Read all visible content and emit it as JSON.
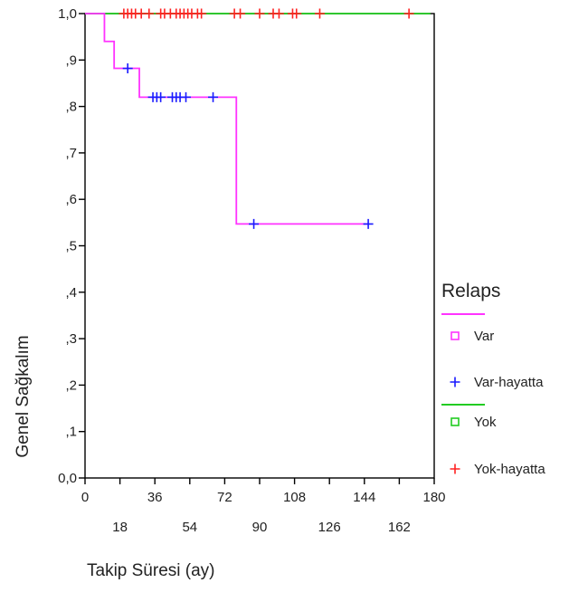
{
  "chart_data": {
    "type": "line",
    "subtype": "kaplan-meier",
    "xlabel": "Takip Süresi (ay)",
    "ylabel": "Genel Sağkalım",
    "xlim": [
      0,
      180
    ],
    "ylim": [
      0,
      1
    ],
    "xticks_upper": [
      "0",
      "36",
      "72",
      "108",
      "144",
      "180"
    ],
    "xticks_upper_values": [
      0,
      36,
      72,
      108,
      144,
      180
    ],
    "xticks_lower": [
      "18",
      "54",
      "90",
      "126",
      "162"
    ],
    "xticks_lower_values": [
      18,
      54,
      90,
      126,
      162
    ],
    "yticks": [
      "0,0",
      ",1",
      ",2",
      ",3",
      ",4",
      ",5",
      ",6",
      ",7",
      ",8",
      ",9",
      "1,0"
    ],
    "yticks_values": [
      0,
      0.1,
      0.2,
      0.3,
      0.4,
      0.5,
      0.6,
      0.7,
      0.8,
      0.9,
      1.0
    ],
    "legend": {
      "title": "Relaps",
      "position": "right",
      "entries": [
        {
          "label": "Var",
          "kind": "line",
          "color": "#ff33ff"
        },
        {
          "label": "Var",
          "kind": "square",
          "color": "#ff33ff"
        },
        {
          "label": "Var-hayatta",
          "kind": "plus",
          "color": "#1a1aff"
        },
        {
          "label": "Yok",
          "kind": "line",
          "color": "#22cc22"
        },
        {
          "label": "Yok",
          "kind": "square",
          "color": "#22cc22"
        },
        {
          "label": "Yok-hayatta",
          "kind": "plus",
          "color": "#ff2222"
        }
      ]
    },
    "series": [
      {
        "name": "Var",
        "color": "#ff33ff",
        "steps": [
          {
            "x": 0,
            "y": 1.0
          },
          {
            "x": 10,
            "y": 0.94
          },
          {
            "x": 15,
            "y": 0.882
          },
          {
            "x": 28,
            "y": 0.82
          },
          {
            "x": 78,
            "y": 0.547
          },
          {
            "x": 146,
            "y": 0.547
          }
        ],
        "censored": [
          {
            "x": 22,
            "y": 0.882
          },
          {
            "x": 35,
            "y": 0.82
          },
          {
            "x": 37,
            "y": 0.82
          },
          {
            "x": 39,
            "y": 0.82
          },
          {
            "x": 45,
            "y": 0.82
          },
          {
            "x": 47,
            "y": 0.82
          },
          {
            "x": 49,
            "y": 0.82
          },
          {
            "x": 52,
            "y": 0.82
          },
          {
            "x": 66,
            "y": 0.82
          },
          {
            "x": 87,
            "y": 0.547
          },
          {
            "x": 146,
            "y": 0.547
          }
        ],
        "censored_color": "#1a1aff"
      },
      {
        "name": "Yok",
        "color": "#22cc22",
        "steps": [
          {
            "x": 0,
            "y": 1.0
          },
          {
            "x": 178,
            "y": 1.0
          }
        ],
        "censored": [
          {
            "x": 20,
            "y": 1.0
          },
          {
            "x": 22,
            "y": 1.0
          },
          {
            "x": 24,
            "y": 1.0
          },
          {
            "x": 26,
            "y": 1.0
          },
          {
            "x": 29,
            "y": 1.0
          },
          {
            "x": 33,
            "y": 1.0
          },
          {
            "x": 39,
            "y": 1.0
          },
          {
            "x": 41,
            "y": 1.0
          },
          {
            "x": 44,
            "y": 1.0
          },
          {
            "x": 47,
            "y": 1.0
          },
          {
            "x": 49,
            "y": 1.0
          },
          {
            "x": 51,
            "y": 1.0
          },
          {
            "x": 53,
            "y": 1.0
          },
          {
            "x": 55,
            "y": 1.0
          },
          {
            "x": 58,
            "y": 1.0
          },
          {
            "x": 60,
            "y": 1.0
          },
          {
            "x": 77,
            "y": 1.0
          },
          {
            "x": 80,
            "y": 1.0
          },
          {
            "x": 90,
            "y": 1.0
          },
          {
            "x": 97,
            "y": 1.0
          },
          {
            "x": 100,
            "y": 1.0
          },
          {
            "x": 107,
            "y": 1.0
          },
          {
            "x": 109,
            "y": 1.0
          },
          {
            "x": 121,
            "y": 1.0
          },
          {
            "x": 167,
            "y": 1.0
          }
        ],
        "censored_color": "#ff2222"
      }
    ]
  }
}
